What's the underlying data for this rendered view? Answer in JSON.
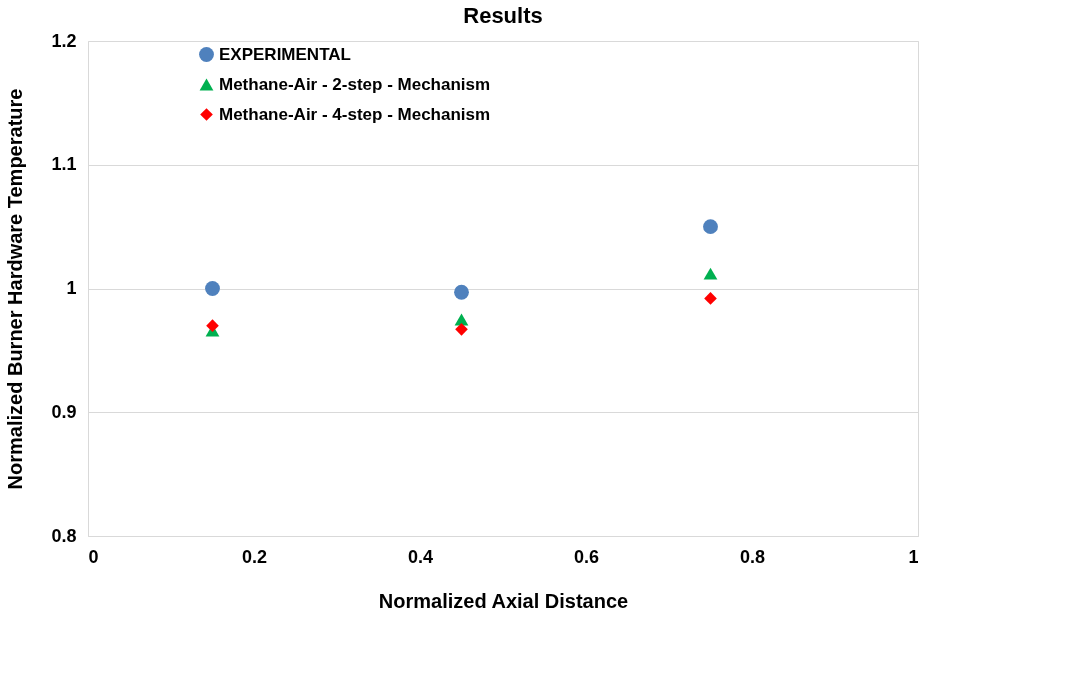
{
  "chart_data": {
    "type": "scatter",
    "title": "Results",
    "xlabel": "Normalized Axial Distance",
    "ylabel": "Normalized Burner Hardware Temperature",
    "x": [
      0.15,
      0.45,
      0.75
    ],
    "series": [
      {
        "name": "EXPERIMENTAL",
        "color": "#4f81bd",
        "marker": "circle",
        "values": [
          1.0,
          0.997,
          1.05
        ]
      },
      {
        "name": "Methane-Air - 2-step - Mechanism",
        "color": "#00b050",
        "marker": "triangle",
        "values": [
          0.966,
          0.975,
          1.012
        ]
      },
      {
        "name": "Methane-Air - 4-step - Mechanism",
        "color": "#ff0000",
        "marker": "diamond",
        "values": [
          0.97,
          0.967,
          0.992
        ]
      }
    ],
    "xlim": [
      0,
      1
    ],
    "xticks": [
      0,
      0.2,
      0.4,
      0.6,
      0.8,
      1
    ],
    "ylim": [
      0.8,
      1.2
    ],
    "yticks": [
      0.8,
      0.9,
      1,
      1.1,
      1.2
    ],
    "grid": "y",
    "legend": "top left"
  }
}
